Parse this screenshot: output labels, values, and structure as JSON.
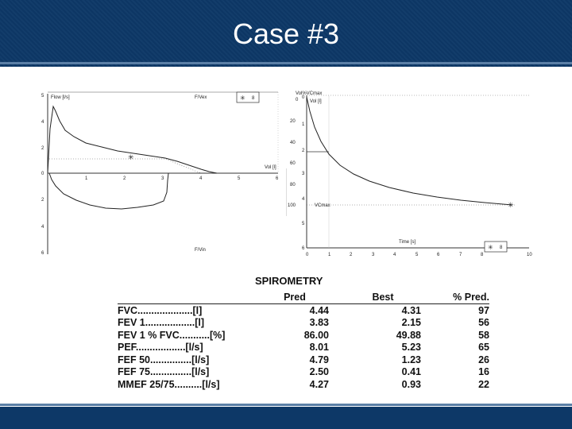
{
  "slide": {
    "title": "Case #3"
  },
  "flow_volume_chart": {
    "y_label": "Flow [l/s]",
    "top_label": "F/Vex",
    "bottom_label": "F/Vin",
    "x_label": "Vol [l]",
    "legend_label": "8",
    "y_ticks_upper": [
      "5",
      "4",
      "2",
      "0"
    ],
    "y_ticks_lower": [
      "2",
      "4",
      "6"
    ],
    "x_ticks": [
      "1",
      "2",
      "3",
      "4",
      "5",
      "6"
    ]
  },
  "volume_time_chart": {
    "label_vol_pct": "Vol%VCmax",
    "label_vol": "Vol [l]",
    "vcmax_label": "VCmax",
    "x_label": "Time [s]",
    "legend_label": "8",
    "left_ticks": [
      "0",
      "20",
      "40",
      "60",
      "80",
      "100"
    ],
    "right_ticks": [
      "0",
      "1",
      "2",
      "3",
      "4",
      "5",
      "6"
    ],
    "x_ticks": [
      "0",
      "1",
      "2",
      "3",
      "4",
      "5",
      "6",
      "7",
      "8",
      "10"
    ]
  },
  "spirometry": {
    "title": "SPIROMETRY",
    "headers": [
      "",
      "Pred",
      "Best",
      "% Pred."
    ],
    "rows": [
      {
        "label": "FVC....................[l]",
        "pred": "4.44",
        "best": "4.31",
        "pct": "97"
      },
      {
        "label": "FEV 1..................[l]",
        "pred": "3.83",
        "best": "2.15",
        "pct": "56"
      },
      {
        "label": "FEV 1 % FVC...........[%]",
        "pred": "86.00",
        "best": "49.88",
        "pct": "58"
      },
      {
        "label": "PEF..................[l/s]",
        "pred": "8.01",
        "best": "5.23",
        "pct": "65"
      },
      {
        "label": "FEF 50...............[l/s]",
        "pred": "4.79",
        "best": "1.23",
        "pct": "26"
      },
      {
        "label": "FEF 75...............[l/s]",
        "pred": "2.50",
        "best": "0.41",
        "pct": "16"
      },
      {
        "label": "MMEF 25/75..........[l/s]",
        "pred": "4.27",
        "best": "0.93",
        "pct": "22"
      }
    ]
  }
}
